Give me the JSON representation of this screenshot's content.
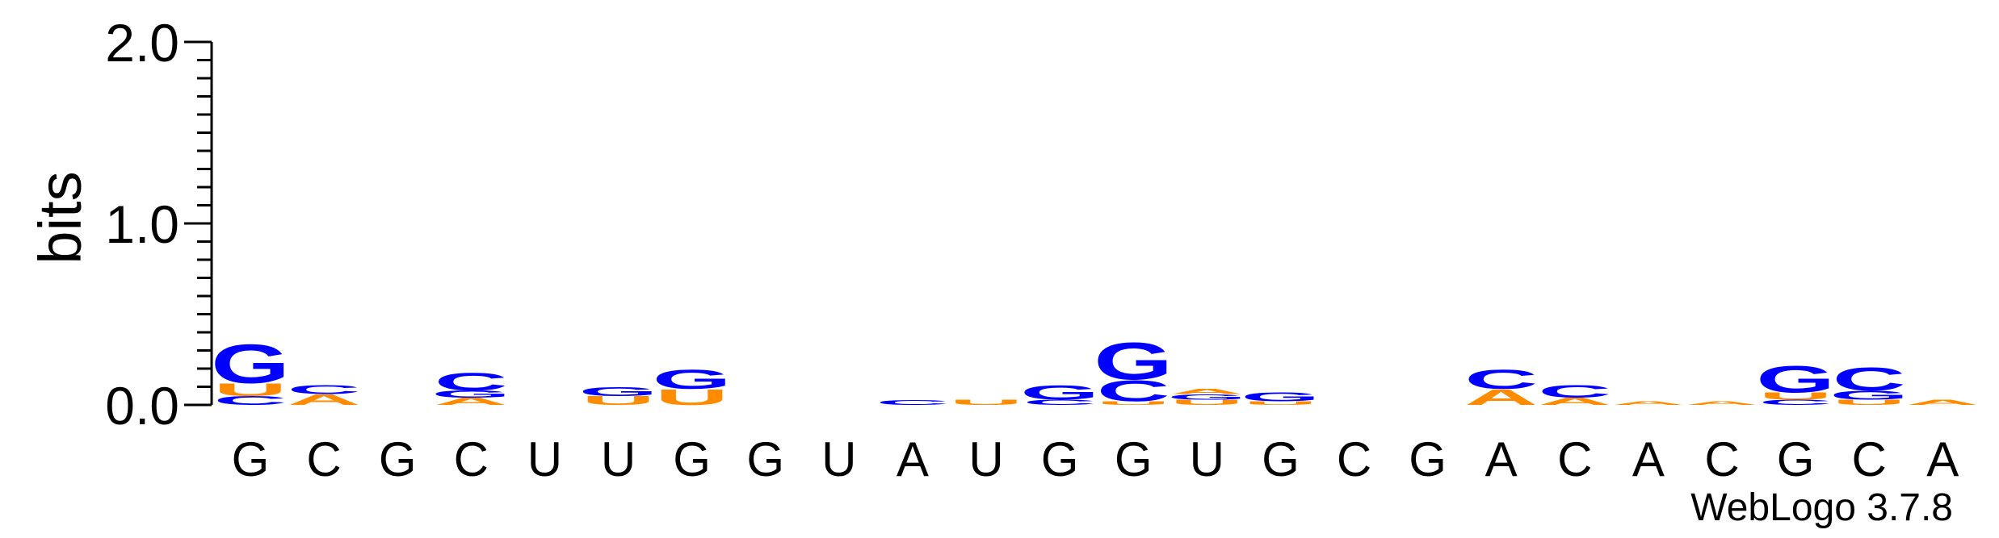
{
  "chart_data": {
    "type": "sequence-logo",
    "title": "",
    "xlabel": "",
    "ylabel": "bits",
    "ylim": [
      0,
      2.0
    ],
    "yticks": [
      "0.0",
      "1.0",
      "2.0"
    ],
    "grid": false,
    "colors": {
      "G": "#0000ff",
      "C": "#0000ff",
      "A": "#ff8c00",
      "U": "#ff8c00"
    },
    "consensus": [
      "G",
      "C",
      "G",
      "C",
      "U",
      "U",
      "G",
      "G",
      "U",
      "A",
      "U",
      "G",
      "G",
      "U",
      "G",
      "C",
      "G",
      "A",
      "C",
      "A",
      "C",
      "G",
      "C",
      "A"
    ],
    "positions": [
      {
        "stack": [
          [
            "C",
            0.05
          ],
          [
            "U",
            0.07
          ],
          [
            "G",
            0.22
          ]
        ]
      },
      {
        "stack": [
          [
            "A",
            0.06
          ],
          [
            "C",
            0.05
          ]
        ]
      },
      {
        "stack": []
      },
      {
        "stack": [
          [
            "A",
            0.04
          ],
          [
            "G",
            0.04
          ],
          [
            "C",
            0.1
          ]
        ]
      },
      {
        "stack": []
      },
      {
        "stack": [
          [
            "U",
            0.05
          ],
          [
            "G",
            0.05
          ]
        ]
      },
      {
        "stack": [
          [
            "U",
            0.09
          ],
          [
            "G",
            0.11
          ]
        ]
      },
      {
        "stack": []
      },
      {
        "stack": []
      },
      {
        "stack": [
          [
            "C",
            0.025
          ]
        ]
      },
      {
        "stack": [
          [
            "U",
            0.03
          ]
        ]
      },
      {
        "stack": [
          [
            "C",
            0.03
          ],
          [
            "G",
            0.08
          ]
        ]
      },
      {
        "stack": [
          [
            "U",
            0.02
          ],
          [
            "C",
            0.12
          ],
          [
            "G",
            0.21
          ]
        ]
      },
      {
        "stack": [
          [
            "U",
            0.03
          ],
          [
            "G",
            0.03
          ],
          [
            "A",
            0.03
          ]
        ]
      },
      {
        "stack": [
          [
            "U",
            0.02
          ],
          [
            "G",
            0.05
          ]
        ]
      },
      {
        "stack": []
      },
      {
        "stack": []
      },
      {
        "stack": [
          [
            "A",
            0.09
          ],
          [
            "C",
            0.11
          ]
        ]
      },
      {
        "stack": [
          [
            "A",
            0.04
          ],
          [
            "C",
            0.07
          ]
        ]
      },
      {
        "stack": [
          [
            "A",
            0.02
          ]
        ]
      },
      {
        "stack": [
          [
            "A",
            0.02
          ]
        ]
      },
      {
        "stack": [
          [
            "C",
            0.03
          ],
          [
            "U",
            0.04
          ],
          [
            "G",
            0.15
          ]
        ]
      },
      {
        "stack": [
          [
            "U",
            0.03
          ],
          [
            "G",
            0.05
          ],
          [
            "C",
            0.13
          ]
        ]
      },
      {
        "stack": [
          [
            "A",
            0.03
          ]
        ]
      }
    ]
  },
  "footer": {
    "credit": "WebLogo 3.7.8"
  }
}
